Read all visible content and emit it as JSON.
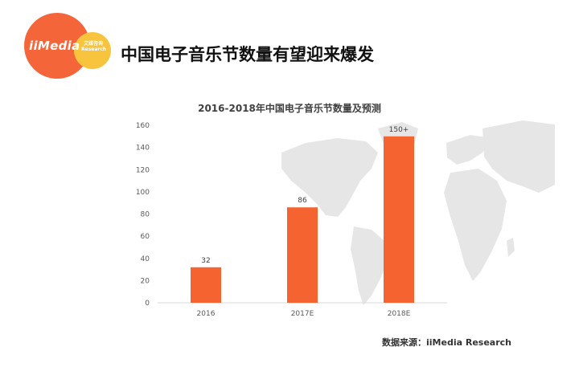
{
  "header": {
    "logo_text": "iiMedia",
    "logo_sub": "艾媒咨询 Research",
    "title": "中国电子音乐节数量有望迎来爆发"
  },
  "source": "数据来源：iiMedia Research",
  "colors": {
    "bar": "#f56331",
    "logo_red": "#f4663a",
    "logo_yellow": "#f9c43d",
    "map": "#e6e6e6"
  },
  "chart_data": {
    "type": "bar",
    "title": "2016-2018年中国电子音乐节数量及预测",
    "categories": [
      "2016",
      "2017E",
      "2018E"
    ],
    "values": [
      32,
      86,
      150
    ],
    "data_labels": [
      "32",
      "86",
      "150+"
    ],
    "ylim": [
      0,
      160
    ],
    "yticks": [
      0,
      20,
      40,
      60,
      80,
      100,
      120,
      140,
      160
    ],
    "xlabel": "",
    "ylabel": "",
    "grid": false,
    "legend": "none"
  }
}
